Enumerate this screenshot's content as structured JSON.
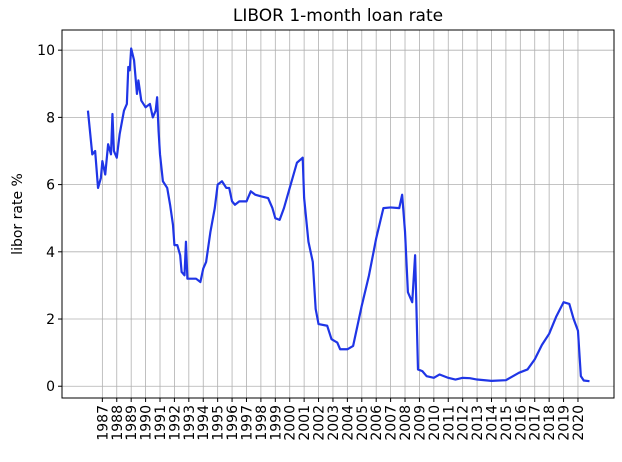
{
  "chart_data": {
    "type": "line",
    "title": "LIBOR 1-month loan rate",
    "y_label": "libor rate %",
    "x": [
      1986.0,
      1986.3,
      1986.5,
      1986.7,
      1986.9,
      1987.0,
      1987.2,
      1987.4,
      1987.6,
      1987.7,
      1987.8,
      1988.0,
      1988.2,
      1988.5,
      1988.7,
      1988.8,
      1988.9,
      1989.0,
      1989.2,
      1989.4,
      1989.5,
      1989.7,
      1990.0,
      1990.3,
      1990.5,
      1990.7,
      1990.8,
      1990.9,
      1991.0,
      1991.2,
      1991.5,
      1991.7,
      1991.9,
      1992.0,
      1992.2,
      1992.4,
      1992.5,
      1992.7,
      1992.8,
      1992.9,
      1993.2,
      1993.5,
      1993.8,
      1994.0,
      1994.2,
      1994.5,
      1994.8,
      1995.0,
      1995.3,
      1995.6,
      1995.8,
      1996.0,
      1996.2,
      1996.5,
      1997.0,
      1997.3,
      1997.6,
      1998.0,
      1998.5,
      1998.8,
      1999.0,
      1999.3,
      1999.6,
      2000.0,
      2000.5,
      2000.9,
      2001.0,
      2001.3,
      2001.6,
      2001.8,
      2002.0,
      2002.6,
      2002.9,
      2003.3,
      2003.5,
      2004.0,
      2004.4,
      2004.7,
      2005.0,
      2005.5,
      2006.0,
      2006.5,
      2007.0,
      2007.6,
      2007.8,
      2008.0,
      2008.2,
      2008.5,
      2008.7,
      2008.9,
      2009.2,
      2009.5,
      2010.0,
      2010.4,
      2011.0,
      2011.5,
      2012.0,
      2012.5,
      2013.0,
      2014.0,
      2015.0,
      2015.9,
      2016.5,
      2017.0,
      2017.5,
      2018.0,
      2018.5,
      2019.0,
      2019.4,
      2019.7,
      2020.0,
      2020.2,
      2020.4,
      2020.8
    ],
    "series": [
      {
        "name": "libor",
        "color": "#1f35e6",
        "values": [
          8.2,
          6.9,
          7.0,
          5.9,
          6.2,
          6.7,
          6.3,
          7.2,
          6.9,
          8.1,
          7.0,
          6.8,
          7.5,
          8.2,
          8.4,
          9.5,
          9.4,
          10.05,
          9.7,
          8.7,
          9.1,
          8.5,
          8.3,
          8.4,
          8.0,
          8.2,
          8.6,
          7.6,
          6.9,
          6.1,
          5.9,
          5.4,
          4.8,
          4.2,
          4.2,
          3.9,
          3.4,
          3.3,
          4.3,
          3.2,
          3.2,
          3.2,
          3.1,
          3.5,
          3.7,
          4.6,
          5.3,
          6.0,
          6.1,
          5.9,
          5.9,
          5.5,
          5.4,
          5.5,
          5.5,
          5.8,
          5.7,
          5.65,
          5.6,
          5.3,
          5.0,
          4.95,
          5.3,
          5.9,
          6.65,
          6.8,
          5.6,
          4.3,
          3.7,
          2.3,
          1.85,
          1.8,
          1.4,
          1.3,
          1.1,
          1.1,
          1.2,
          1.8,
          2.4,
          3.3,
          4.4,
          5.3,
          5.32,
          5.3,
          5.7,
          4.6,
          2.8,
          2.5,
          3.9,
          0.5,
          0.45,
          0.3,
          0.25,
          0.35,
          0.25,
          0.2,
          0.25,
          0.24,
          0.2,
          0.16,
          0.18,
          0.4,
          0.5,
          0.8,
          1.23,
          1.56,
          2.08,
          2.5,
          2.45,
          2.0,
          1.65,
          0.3,
          0.17,
          0.15
        ]
      }
    ],
    "xlim": [
      1984.2,
      2022.5
    ],
    "ylim": [
      -0.35,
      10.6
    ],
    "xticks": [
      1987,
      1988,
      1989,
      1990,
      1991,
      1992,
      1993,
      1994,
      1995,
      1996,
      1997,
      1998,
      1999,
      2000,
      2001,
      2002,
      2003,
      2004,
      2005,
      2006,
      2007,
      2008,
      2009,
      2010,
      2011,
      2012,
      2013,
      2014,
      2015,
      2016,
      2017,
      2018,
      2019,
      2020
    ],
    "yticks": [
      0,
      2,
      4,
      6,
      8,
      10
    ],
    "grid": true
  }
}
